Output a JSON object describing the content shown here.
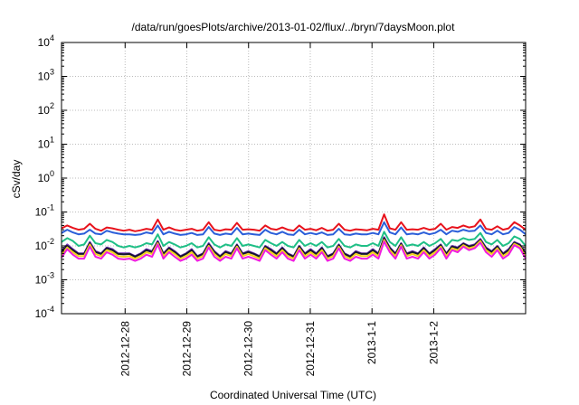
{
  "chart_data": {
    "type": "line",
    "title": "/data/run/goesPlots/archive/2013-01-02/flux/../bryn/7daysMoon.plot",
    "xlabel": "Coordinated Universal Time (UTC)",
    "ylabel": "cSv/day",
    "yscale": "log",
    "ylim": [
      0.0001,
      10000
    ],
    "xlim": [
      0,
      1
    ],
    "grid": true,
    "y_ticks": [
      {
        "value": 0.0001,
        "base": "10",
        "exp": "-4"
      },
      {
        "value": 0.001,
        "base": "10",
        "exp": "-3"
      },
      {
        "value": 0.01,
        "base": "10",
        "exp": "-2"
      },
      {
        "value": 0.1,
        "base": "10",
        "exp": "-1"
      },
      {
        "value": 1,
        "base": "10",
        "exp": "0"
      },
      {
        "value": 10,
        "base": "10",
        "exp": "1"
      },
      {
        "value": 100,
        "base": "10",
        "exp": "2"
      },
      {
        "value": 1000,
        "base": "10",
        "exp": "3"
      },
      {
        "value": 10000,
        "base": "10",
        "exp": "4"
      }
    ],
    "x_ticks": [
      {
        "value": 0.137,
        "label": "2012-12-28"
      },
      {
        "value": 0.27,
        "label": "2012-12-29"
      },
      {
        "value": 0.403,
        "label": "2012-12-30"
      },
      {
        "value": 0.536,
        "label": "2012-12-31"
      },
      {
        "value": 0.669,
        "label": "2013-1-1"
      },
      {
        "value": 0.802,
        "label": "2013-1-2"
      }
    ],
    "series": [
      {
        "color": "#e8121c",
        "values": [
          0.033,
          0.04,
          0.034,
          0.03,
          0.032,
          0.045,
          0.032,
          0.028,
          0.035,
          0.033,
          0.03,
          0.028,
          0.03,
          0.027,
          0.029,
          0.032,
          0.03,
          0.06,
          0.03,
          0.035,
          0.03,
          0.028,
          0.03,
          0.032,
          0.028,
          0.03,
          0.05,
          0.03,
          0.028,
          0.031,
          0.03,
          0.048,
          0.03,
          0.031,
          0.03,
          0.028,
          0.04,
          0.032,
          0.03,
          0.035,
          0.03,
          0.028,
          0.04,
          0.03,
          0.032,
          0.029,
          0.034,
          0.028,
          0.03,
          0.045,
          0.03,
          0.028,
          0.031,
          0.03,
          0.029,
          0.032,
          0.03,
          0.085,
          0.033,
          0.03,
          0.05,
          0.03,
          0.031,
          0.03,
          0.034,
          0.03,
          0.032,
          0.045,
          0.03,
          0.036,
          0.034,
          0.04,
          0.035,
          0.038,
          0.06,
          0.032,
          0.03,
          0.038,
          0.03,
          0.033,
          0.05,
          0.04,
          0.03
        ]
      },
      {
        "color": "#2b5ed9",
        "values": [
          0.024,
          0.03,
          0.025,
          0.022,
          0.023,
          0.03,
          0.023,
          0.022,
          0.028,
          0.025,
          0.023,
          0.022,
          0.022,
          0.021,
          0.022,
          0.025,
          0.023,
          0.04,
          0.022,
          0.026,
          0.023,
          0.021,
          0.022,
          0.024,
          0.021,
          0.022,
          0.036,
          0.023,
          0.021,
          0.023,
          0.022,
          0.034,
          0.022,
          0.023,
          0.022,
          0.021,
          0.03,
          0.024,
          0.022,
          0.026,
          0.022,
          0.021,
          0.03,
          0.022,
          0.024,
          0.022,
          0.025,
          0.021,
          0.022,
          0.032,
          0.022,
          0.021,
          0.023,
          0.022,
          0.022,
          0.024,
          0.022,
          0.05,
          0.025,
          0.022,
          0.035,
          0.022,
          0.023,
          0.022,
          0.025,
          0.022,
          0.024,
          0.03,
          0.022,
          0.028,
          0.026,
          0.03,
          0.027,
          0.028,
          0.04,
          0.024,
          0.022,
          0.028,
          0.022,
          0.024,
          0.036,
          0.03,
          0.022
        ]
      },
      {
        "color": "#1fbf86",
        "values": [
          0.013,
          0.017,
          0.014,
          0.01,
          0.011,
          0.02,
          0.012,
          0.011,
          0.015,
          0.013,
          0.01,
          0.009,
          0.01,
          0.009,
          0.01,
          0.012,
          0.011,
          0.022,
          0.01,
          0.013,
          0.011,
          0.009,
          0.01,
          0.012,
          0.009,
          0.01,
          0.018,
          0.011,
          0.009,
          0.011,
          0.01,
          0.017,
          0.01,
          0.011,
          0.01,
          0.009,
          0.015,
          0.012,
          0.01,
          0.013,
          0.01,
          0.009,
          0.015,
          0.01,
          0.012,
          0.01,
          0.013,
          0.009,
          0.01,
          0.016,
          0.01,
          0.009,
          0.011,
          0.01,
          0.01,
          0.012,
          0.01,
          0.026,
          0.013,
          0.01,
          0.018,
          0.01,
          0.011,
          0.01,
          0.013,
          0.01,
          0.012,
          0.016,
          0.01,
          0.015,
          0.014,
          0.017,
          0.015,
          0.016,
          0.024,
          0.013,
          0.011,
          0.015,
          0.01,
          0.012,
          0.019,
          0.016,
          0.01
        ]
      },
      {
        "color": "#6b2fb0",
        "values": [
          0.007,
          0.011,
          0.008,
          0.006,
          0.006,
          0.013,
          0.007,
          0.006,
          0.009,
          0.008,
          0.006,
          0.006,
          0.006,
          0.005,
          0.006,
          0.008,
          0.007,
          0.014,
          0.006,
          0.009,
          0.007,
          0.005,
          0.006,
          0.008,
          0.005,
          0.006,
          0.012,
          0.007,
          0.005,
          0.007,
          0.006,
          0.011,
          0.006,
          0.007,
          0.006,
          0.005,
          0.01,
          0.008,
          0.006,
          0.009,
          0.006,
          0.005,
          0.01,
          0.006,
          0.008,
          0.006,
          0.009,
          0.005,
          0.006,
          0.011,
          0.006,
          0.005,
          0.007,
          0.006,
          0.006,
          0.008,
          0.006,
          0.018,
          0.009,
          0.006,
          0.012,
          0.006,
          0.007,
          0.006,
          0.009,
          0.006,
          0.008,
          0.011,
          0.006,
          0.01,
          0.009,
          0.012,
          0.01,
          0.011,
          0.016,
          0.009,
          0.007,
          0.01,
          0.006,
          0.008,
          0.013,
          0.011,
          0.006
        ]
      },
      {
        "color": "#14142e",
        "values": [
          0.0065,
          0.01,
          0.0075,
          0.0058,
          0.0058,
          0.012,
          0.0066,
          0.0058,
          0.0085,
          0.0075,
          0.0058,
          0.0056,
          0.0058,
          0.0048,
          0.0058,
          0.0075,
          0.0066,
          0.013,
          0.0058,
          0.0085,
          0.0066,
          0.0048,
          0.0058,
          0.0075,
          0.0048,
          0.0058,
          0.011,
          0.0066,
          0.0048,
          0.0066,
          0.0058,
          0.0105,
          0.0058,
          0.0066,
          0.0058,
          0.0048,
          0.0095,
          0.0075,
          0.0058,
          0.0085,
          0.0058,
          0.0048,
          0.0095,
          0.0058,
          0.0075,
          0.0058,
          0.0085,
          0.0048,
          0.0058,
          0.0105,
          0.0058,
          0.0048,
          0.0066,
          0.0058,
          0.0058,
          0.0075,
          0.0058,
          0.017,
          0.0085,
          0.0058,
          0.0115,
          0.0058,
          0.0066,
          0.0058,
          0.0085,
          0.0058,
          0.0075,
          0.0105,
          0.0058,
          0.0095,
          0.0085,
          0.0115,
          0.0095,
          0.0105,
          0.015,
          0.0085,
          0.0066,
          0.0095,
          0.0058,
          0.0075,
          0.0125,
          0.0105,
          0.0058
        ]
      },
      {
        "color": "#f2d21b",
        "values": [
          0.0055,
          0.009,
          0.0065,
          0.005,
          0.005,
          0.011,
          0.0058,
          0.005,
          0.0075,
          0.0065,
          0.005,
          0.0048,
          0.005,
          0.0042,
          0.005,
          0.0065,
          0.0058,
          0.012,
          0.005,
          0.0075,
          0.0058,
          0.0042,
          0.005,
          0.0065,
          0.0042,
          0.005,
          0.01,
          0.0058,
          0.0042,
          0.0058,
          0.005,
          0.0095,
          0.005,
          0.0058,
          0.005,
          0.0042,
          0.0085,
          0.0065,
          0.005,
          0.0075,
          0.005,
          0.0042,
          0.0085,
          0.005,
          0.0065,
          0.005,
          0.0075,
          0.0042,
          0.005,
          0.0095,
          0.005,
          0.0042,
          0.0058,
          0.005,
          0.005,
          0.0065,
          0.005,
          0.015,
          0.0075,
          0.005,
          0.0105,
          0.005,
          0.0058,
          0.005,
          0.0075,
          0.005,
          0.0065,
          0.0095,
          0.005,
          0.0085,
          0.0075,
          0.0105,
          0.0085,
          0.0095,
          0.014,
          0.0075,
          0.0058,
          0.0085,
          0.005,
          0.0065,
          0.0115,
          0.0095,
          0.005
        ]
      },
      {
        "color": "#f01ce0",
        "values": [
          0.0045,
          0.008,
          0.0055,
          0.0042,
          0.0042,
          0.0095,
          0.0048,
          0.0042,
          0.0065,
          0.0055,
          0.0042,
          0.004,
          0.0042,
          0.0036,
          0.0042,
          0.0055,
          0.0048,
          0.011,
          0.0042,
          0.0065,
          0.0048,
          0.0036,
          0.0042,
          0.0055,
          0.0036,
          0.0042,
          0.009,
          0.0048,
          0.0036,
          0.0048,
          0.0042,
          0.0085,
          0.0042,
          0.0048,
          0.0042,
          0.0036,
          0.0075,
          0.0055,
          0.0042,
          0.0065,
          0.0042,
          0.0036,
          0.0075,
          0.0042,
          0.0055,
          0.0042,
          0.0065,
          0.0036,
          0.0042,
          0.0085,
          0.0042,
          0.0036,
          0.0048,
          0.0042,
          0.0042,
          0.0055,
          0.0042,
          0.0135,
          0.0065,
          0.0042,
          0.0095,
          0.0042,
          0.0048,
          0.0042,
          0.0065,
          0.0042,
          0.0055,
          0.0085,
          0.0042,
          0.0075,
          0.0065,
          0.0095,
          0.0075,
          0.0085,
          0.0125,
          0.0065,
          0.0048,
          0.0075,
          0.0042,
          0.0055,
          0.0105,
          0.0085,
          0.0042
        ]
      }
    ]
  }
}
